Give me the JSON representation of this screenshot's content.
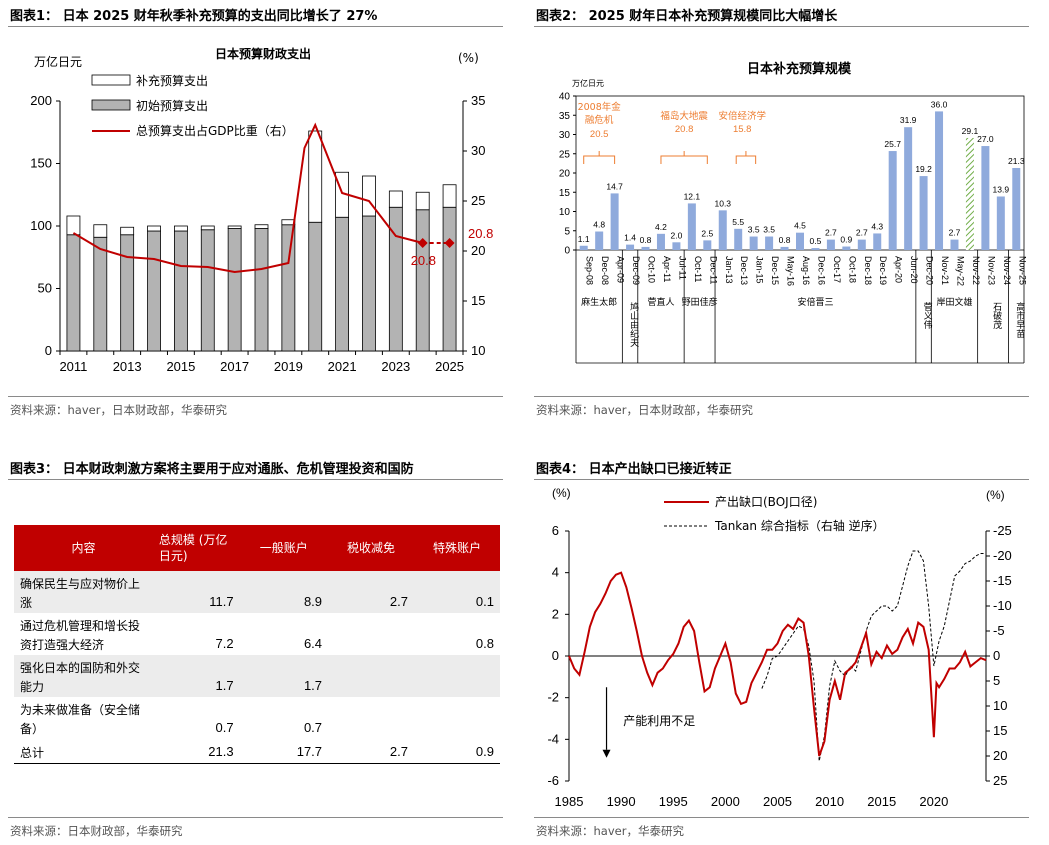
{
  "chart_data": [
    {
      "type": "bar+line",
      "panel_title": "图表1： 日本 2025 财年秋季补充预算的支出同比增长了 27%",
      "title": "日本预算财政支出",
      "ylabel_left": "万亿日元",
      "ylabel_right": "(%)",
      "legend": [
        "补充预算支出",
        "初始预算支出",
        "总预算支出占GDP比重（右）"
      ],
      "ylim_left": [
        0,
        200
      ],
      "ylim_right": [
        10,
        35
      ],
      "yticks_left": [
        "0",
        "50",
        "100",
        "150",
        "200"
      ],
      "yticks_right": [
        "10",
        "15",
        "20",
        "25",
        "30",
        "35"
      ],
      "xtick_labels": [
        "2011",
        "2013",
        "2015",
        "2017",
        "2019",
        "2021",
        "2023",
        "2025"
      ],
      "years": [
        2011,
        2012,
        2013,
        2014,
        2015,
        2016,
        2017,
        2018,
        2019,
        2020,
        2021,
        2022,
        2023,
        2024,
        2025
      ],
      "initial": [
        93,
        91,
        93,
        96,
        96,
        97,
        98,
        98,
        101,
        103,
        107,
        108,
        115,
        113,
        115
      ],
      "supplementary": [
        15,
        10,
        6,
        4,
        4,
        3,
        2,
        3,
        4,
        73,
        36,
        32,
        13,
        14,
        18
      ],
      "gdp_line_x": [
        2011,
        2012,
        2013,
        2014,
        2015,
        2016,
        2017,
        2018,
        2019,
        2019.6,
        2020,
        2021,
        2022,
        2023,
        2024
      ],
      "gdp_line_y": [
        21.8,
        20.2,
        19.4,
        19.2,
        18.5,
        18.4,
        17.9,
        18.2,
        18.8,
        30.3,
        32.6,
        25.8,
        25.0,
        21.5,
        20.8
      ],
      "gdp_projection_x": [
        2024,
        2025
      ],
      "gdp_projection_y": [
        20.8,
        20.8
      ],
      "annotation_right": "20.8",
      "annotation_point": "20.8"
    },
    {
      "type": "bar",
      "panel_title": "图表2： 2025 财年日本补充预算规模同比大幅增长",
      "title": "日本补充预算规模",
      "ylabel": "万亿日元",
      "ylim": [
        0,
        40
      ],
      "yticks": [
        "0",
        "5",
        "10",
        "15",
        "20",
        "25",
        "30",
        "35",
        "40"
      ],
      "categories": [
        "Sep-08",
        "Dec-08",
        "Apr-09",
        "Dec-09",
        "Oct-10",
        "Apr-11",
        "Jul-11",
        "Oct-11",
        "Dec-11",
        "Jan-13",
        "Dec-13",
        "Jan-15",
        "Dec-15",
        "May-16",
        "Aug-16",
        "Dec-16",
        "Oct-17",
        "Oct-18",
        "Dec-18",
        "Dec-19",
        "Apr-20",
        "Jun-20",
        "Dec-20",
        "Nov-21",
        "May-22",
        "Nov-22",
        "Nov-23",
        "Nov-24",
        "Nov-25"
      ],
      "values": [
        1.1,
        4.8,
        14.7,
        1.4,
        0.8,
        4.2,
        2.0,
        12.1,
        2.5,
        10.3,
        5.5,
        3.5,
        3.5,
        0.8,
        4.5,
        0.5,
        2.7,
        0.9,
        2.7,
        4.3,
        25.7,
        31.9,
        19.2,
        36.0,
        2.7,
        29.1,
        27.0,
        13.9,
        21.3
      ],
      "value_labels": [
        "1.1",
        "4.8",
        "14.7",
        "1.4",
        "0.8",
        "4.2",
        "2.0",
        "12.1",
        "2.5",
        "10.3",
        "5.5",
        "3.5",
        "3.5",
        "0.8",
        "4.5",
        "0.5",
        "2.7",
        "0.9",
        "2.7",
        "4.3",
        "25.7",
        "31.9",
        "19.2",
        "36.0",
        "2.7",
        "29.1",
        "27.0",
        "13.9",
        "21.3"
      ],
      "hatched_index": 25,
      "annotations": [
        {
          "line1": "2008年金",
          "line2": "融危机",
          "value": "20.5"
        },
        {
          "line1": "福岛大地震",
          "line2": "",
          "value": "20.8"
        },
        {
          "line1": "安倍经济学",
          "line2": "",
          "value": "15.8"
        }
      ],
      "pm_groups": [
        {
          "name": "麻生太郎",
          "from": 0,
          "to": 2,
          "vertical": false
        },
        {
          "name": "鸠山由纪夫",
          "from": 3,
          "to": 3,
          "vertical": true
        },
        {
          "name": "菅直人",
          "from": 4,
          "to": 6,
          "vertical": false
        },
        {
          "name": "野田佳彦",
          "from": 7,
          "to": 8,
          "vertical": false
        },
        {
          "name": "安倍晋三",
          "from": 9,
          "to": 21,
          "vertical": false
        },
        {
          "name": "菅义伟",
          "from": 22,
          "to": 22,
          "vertical": true
        },
        {
          "name": "岸田文雄",
          "from": 23,
          "to": 25,
          "vertical": false
        },
        {
          "name": "石破茂",
          "from": 26,
          "to": 27,
          "vertical": true
        },
        {
          "name": "高市早苗",
          "from": 28,
          "to": 28,
          "vertical": true
        }
      ]
    },
    {
      "type": "table",
      "panel_title": "图表3： 日本财政刺激方案将主要用于应对通胀、危机管理投资和国防",
      "headers": [
        "内容",
        "总规模 (万亿日元)",
        "一般账户",
        "税收减免",
        "特殊账户"
      ],
      "rows": [
        {
          "label": "确保民生与应对物价上涨",
          "total": "11.7",
          "general": "8.9",
          "tax": "2.7",
          "special": "0.1"
        },
        {
          "label": "通过危机管理和增长投资打造强大经济",
          "total": "7.2",
          "general": "6.4",
          "tax": "",
          "special": "0.8"
        },
        {
          "label": "强化日本的国防和外交能力",
          "total": "1.7",
          "general": "1.7",
          "tax": "",
          "special": ""
        },
        {
          "label": "为未来做准备（安全储备）",
          "total": "0.7",
          "general": "0.7",
          "tax": "",
          "special": ""
        },
        {
          "label": "总计",
          "total": "21.3",
          "general": "17.7",
          "tax": "2.7",
          "special": "0.9"
        }
      ]
    },
    {
      "type": "line",
      "panel_title": "图表4： 日本产出缺口已接近转正",
      "ylabel_left": "(%)",
      "ylabel_right": "(%)",
      "ylim_left": [
        -6,
        6
      ],
      "ylim_right": [
        25,
        -25
      ],
      "yticks_left": [
        "6",
        "4",
        "2",
        "0",
        "-2",
        "-4",
        "-6"
      ],
      "yticks_right": [
        "-25",
        "-20",
        "-15",
        "-10",
        "-5",
        "0",
        "5",
        "10",
        "15",
        "20",
        "25"
      ],
      "xlim": [
        1985,
        2025
      ],
      "xtick_labels": [
        "1985",
        "1990",
        "1995",
        "2000",
        "2005",
        "2010",
        "2015",
        "2020"
      ],
      "series": [
        {
          "name": "产出缺口(BOJ口径)",
          "x": [
            1985,
            1985.5,
            1986,
            1986.5,
            1987,
            1987.5,
            1988,
            1988.5,
            1989,
            1989.5,
            1990,
            1990.5,
            1991,
            1991.5,
            1992,
            1992.5,
            1993,
            1993.5,
            1994,
            1994.5,
            1995,
            1995.5,
            1996,
            1996.5,
            1997,
            1997.5,
            1998,
            1998.5,
            1999,
            1999.5,
            2000,
            2000.5,
            2001,
            2001.5,
            2002,
            2002.5,
            2003,
            2003.5,
            2004,
            2004.5,
            2005,
            2005.5,
            2006,
            2006.5,
            2007,
            2007.5,
            2008,
            2008.5,
            2009,
            2009.5,
            2010,
            2010.5,
            2011,
            2011.5,
            2012,
            2012.5,
            2013,
            2013.5,
            2014,
            2014.5,
            2015,
            2015.5,
            2016,
            2016.5,
            2017,
            2017.5,
            2018,
            2018.5,
            2019,
            2019.5,
            2020,
            2020.25,
            2020.5,
            2021,
            2021.5,
            2022,
            2022.5,
            2023,
            2023.5,
            2024,
            2024.5,
            2025
          ],
          "y": [
            0,
            -0.6,
            -0.9,
            0.2,
            1.4,
            2.1,
            2.5,
            3.0,
            3.6,
            3.9,
            4.0,
            3.3,
            2.3,
            1.2,
            0.0,
            -0.8,
            -1.4,
            -0.8,
            -0.6,
            -0.2,
            0.1,
            0.6,
            1.4,
            1.7,
            1.2,
            -0.3,
            -1.7,
            -1.5,
            -0.6,
            0.0,
            0.6,
            -0.3,
            -1.8,
            -2.3,
            -2.2,
            -1.3,
            -0.8,
            -0.3,
            0.3,
            0.3,
            0.6,
            1.2,
            1.5,
            1.3,
            1.8,
            1.6,
            0.0,
            -2.5,
            -4.8,
            -4.1,
            -2.1,
            -1.2,
            -2.1,
            -0.8,
            -0.6,
            -0.3,
            0.4,
            1.1,
            -0.4,
            0.2,
            -0.1,
            0.5,
            0.1,
            0.3,
            0.9,
            1.3,
            0.6,
            1.6,
            1.4,
            0.3,
            -3.9,
            -1.3,
            -1.5,
            -1.1,
            -0.6,
            -0.6,
            -0.3,
            0.2,
            -0.5,
            -0.3,
            -0.1,
            -0.2
          ]
        },
        {
          "name": "Tankan 综合指标（右轴 逆序）",
          "x": [
            2003.5,
            2004,
            2004.5,
            2005,
            2005.5,
            2006,
            2006.5,
            2007,
            2007.5,
            2008,
            2008.5,
            2009,
            2009.5,
            2010,
            2010.5,
            2011,
            2011.5,
            2012,
            2012.5,
            2013,
            2013.5,
            2014,
            2014.5,
            2015,
            2015.5,
            2016,
            2016.5,
            2017,
            2017.5,
            2018,
            2018.5,
            2019,
            2019.5,
            2020,
            2020.5,
            2021,
            2021.5,
            2022,
            2022.5,
            2023,
            2023.5,
            2024,
            2024.5,
            2025
          ],
          "y": [
            6.5,
            4.0,
            0.5,
            0.0,
            -1.5,
            -3.0,
            -4.5,
            -6.0,
            -5.5,
            -2.0,
            5.0,
            21.0,
            16.0,
            6.0,
            1.0,
            3.0,
            4.0,
            2.0,
            3.0,
            -1.0,
            -5.0,
            -8.0,
            -9.0,
            -10.0,
            -10.0,
            -9.0,
            -10.0,
            -14.0,
            -18.0,
            -21.0,
            -21.0,
            -19.0,
            -10.0,
            2.0,
            -3.0,
            -6.0,
            -11.0,
            -16.0,
            -17.0,
            -18.5,
            -19.0,
            -20.0,
            -20.5,
            -20.5
          ]
        }
      ],
      "arrow_label": "产能利用不足"
    }
  ],
  "sources": {
    "s1": "资料来源：haver，日本财政部，华泰研究",
    "s2": "资料来源：haver，日本财政部，华泰研究",
    "s3": "资料来源：日本财政部，华泰研究",
    "s4": "资料来源：haver，华泰研究"
  },
  "colors": {
    "red": "#c00000",
    "grey_bar": "#b3b3b3",
    "blue_bar": "#8faadc",
    "hatch": "#70ad47",
    "annot": "#ed7d31"
  }
}
